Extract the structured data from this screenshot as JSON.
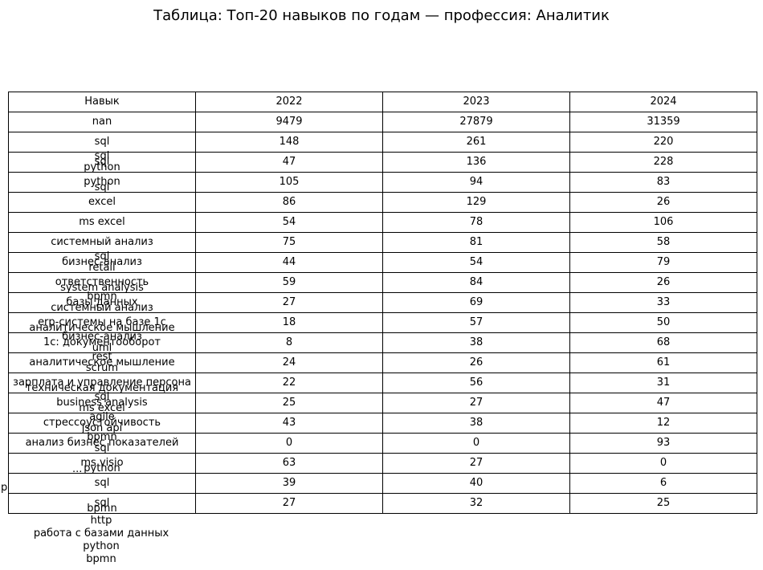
{
  "chart_data": {
    "type": "table",
    "title": "Таблица: Топ-20 навыков по годам — профессия: Аналитик",
    "columns": [
      "Навык",
      "2022",
      "2023",
      "2024"
    ],
    "rows": [
      {
        "skill": "nan",
        "values": [
          9479,
          27879,
          31359
        ]
      },
      {
        "skill": "sql",
        "values": [
          148,
          261,
          220
        ]
      },
      {
        "skill": "sql",
        "above": "sql",
        "below": "python",
        "values": [
          47,
          136,
          228
        ]
      },
      {
        "skill": "python",
        "below": "sql",
        "values": [
          105,
          94,
          83
        ]
      },
      {
        "skill": "excel",
        "values": [
          86,
          129,
          26
        ]
      },
      {
        "skill": "ms excel",
        "values": [
          54,
          78,
          106
        ]
      },
      {
        "skill": "системный анализ",
        "values": [
          75,
          81,
          58
        ]
      },
      {
        "skill": "бизнес-анализ",
        "above": "sql",
        "below": "retail",
        "values": [
          44,
          54,
          79
        ]
      },
      {
        "skill": "ответственность",
        "below": "system analysis",
        "values": [
          59,
          84,
          26
        ]
      },
      {
        "skill": "базы данных",
        "above": "bpmn",
        "below": "системный анализ",
        "values": [
          27,
          69,
          33
        ]
      },
      {
        "skill": "erp-системы на базе 1с",
        "below": "аналитическое мышление",
        "values": [
          18,
          57,
          50
        ]
      },
      {
        "skill": "1с: документооборот",
        "above": "бизнес-анализ",
        "below": "uml",
        "values": [
          8,
          38,
          68
        ]
      },
      {
        "skill": "аналитическое мышление",
        "above": "rest",
        "below": "scrum",
        "values": [
          24,
          26,
          61
        ]
      },
      {
        "skill": "зарплата и управление персона",
        "below": "техническая документация",
        "values": [
          22,
          56,
          31
        ]
      },
      {
        "skill": "business analysis",
        "above": "sql",
        "below": "ms excel",
        "values": [
          25,
          27,
          47
        ]
      },
      {
        "skill": "стрессоустойчивость",
        "above": "agile",
        "below": "json api",
        "values": [
          43,
          38,
          12
        ]
      },
      {
        "skill": "анализ бизнес показателей",
        "above": "bpmn",
        "below": "sql",
        "values": [
          0,
          0,
          93
        ]
      },
      {
        "skill": "ms visio",
        "below": "python",
        "values": [
          63,
          27,
          0
        ]
      },
      {
        "skill": "sql",
        "values": [
          39,
          40,
          6
        ]
      },
      {
        "skill": "sql",
        "below": "bpmn",
        "values": [
          27,
          32,
          25
        ]
      }
    ],
    "overflow_labels": [
      "http",
      "работа с базами данных",
      "python",
      "bpmn"
    ],
    "stray_label": "p",
    "ellipsis_label": "..."
  }
}
